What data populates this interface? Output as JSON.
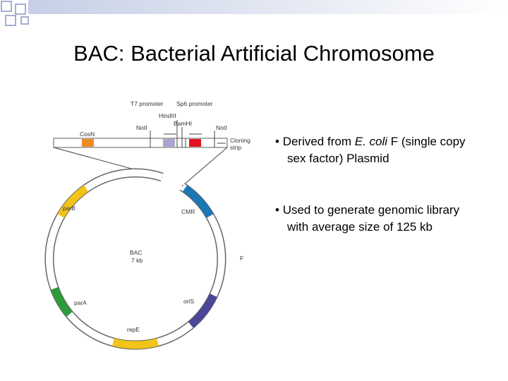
{
  "slide": {
    "title": "BAC: Bacterial Artificial Chromosome",
    "bullets": [
      {
        "parts": [
          "Derived from ",
          "E. coli",
          " F (single copy sex factor) Plasmid"
        ]
      },
      {
        "parts": [
          "Used to generate genomic library with average size of 125 kb"
        ]
      }
    ],
    "diagram": {
      "t7_promoter": "T7 promoter",
      "sp6_promoter": "Sp6 promoter",
      "hindiii": "HindIII",
      "bamhi": "BamHI",
      "noti_left": "NotI",
      "noti_right": "NotI",
      "cosn": "CosN",
      "cloning": "Cloning",
      "strip": "strip",
      "parb": "parB",
      "cmr": "CMR",
      "bac": "BAC",
      "size": "7 kb",
      "f": "F",
      "para": "parA",
      "oris": "oriS",
      "repe": "repE"
    }
  }
}
